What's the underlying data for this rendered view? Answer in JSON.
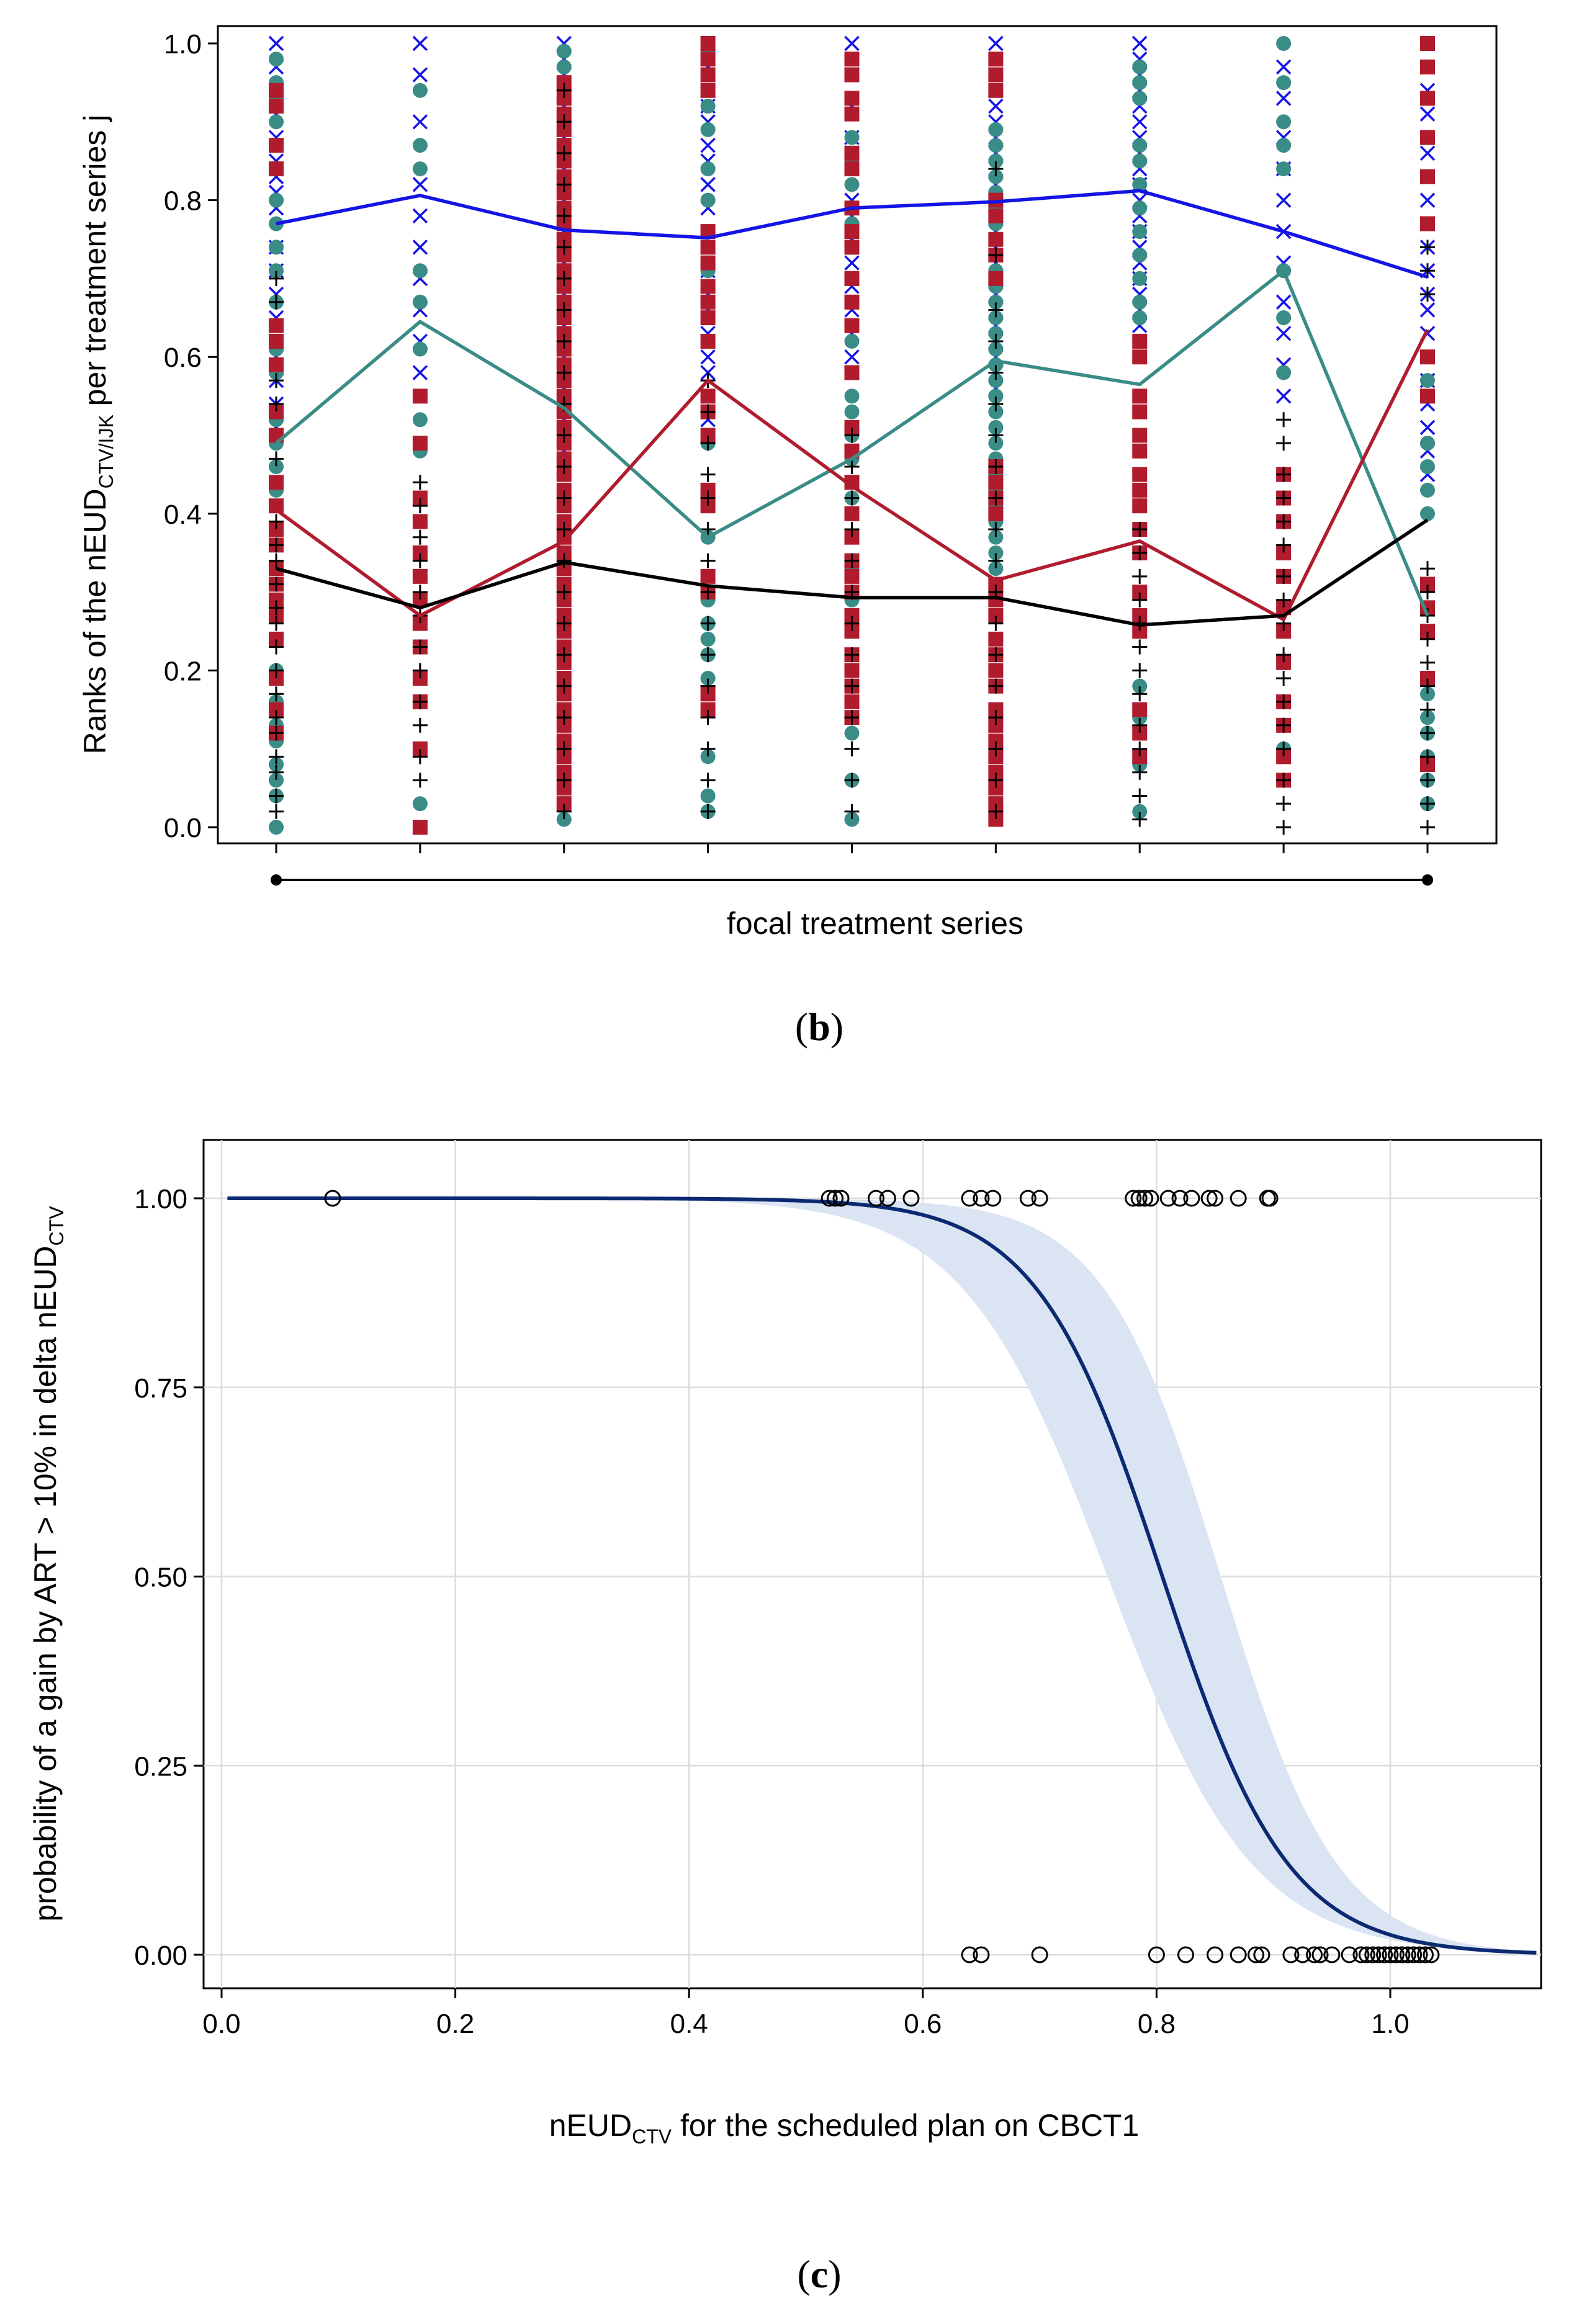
{
  "figure": {
    "caption_b_open": "(",
    "caption_b_letter": "b",
    "caption_b_close": ")",
    "caption_c_open": "(",
    "caption_c_letter": "c",
    "caption_c_close": ")"
  },
  "colors": {
    "blue": "#1414e6",
    "teal": "#3a8c86",
    "red": "#b01c2e",
    "black": "#000000",
    "navy": "#0c2a72",
    "band": "#dbe4f3",
    "grid": "#dcdcdc"
  },
  "chart_data": [
    {
      "type": "scatter",
      "panel": "b",
      "ylabel_pre": "Ranks of the nEUD",
      "ylabel_sub": "CTV/IJK",
      "ylabel_post": " per treatment series j",
      "xlabel": "focal treatment series",
      "ylim": [
        0,
        1
      ],
      "yticks": [
        "0.0",
        "0.2",
        "0.4",
        "0.6",
        "0.8",
        "1.0"
      ],
      "ytick_values": [
        0,
        0.2,
        0.4,
        0.6,
        0.8,
        1.0
      ],
      "x": [
        1,
        2,
        3,
        4,
        5,
        6,
        7,
        8,
        9
      ],
      "xlim": [
        0.6,
        9.4
      ],
      "grid": false,
      "series": [
        {
          "marker": "x",
          "color": "#1414e6",
          "mean": [
            0.77,
            0.806,
            0.762,
            0.752,
            0.79,
            0.798,
            0.812,
            0.76,
            0.702
          ],
          "points": [
            [
              1.0,
              0.97,
              0.94,
              0.91,
              0.88,
              0.85,
              0.83,
              0.81,
              0.79,
              0.74,
              0.71,
              0.68,
              0.65,
              0.6,
              0.57,
              0.54,
              0.51
            ],
            [
              1.0,
              0.96,
              0.9,
              0.82,
              0.78,
              0.74,
              0.7,
              0.66,
              0.62,
              0.58
            ],
            [
              1.0,
              0.98,
              0.96,
              0.94,
              0.92,
              0.9,
              0.88,
              0.86,
              0.84,
              0.82,
              0.8,
              0.78,
              0.76,
              0.74,
              0.72,
              0.7,
              0.68,
              0.66,
              0.64,
              0.62,
              0.6,
              0.58,
              0.56,
              0.54,
              0.52,
              0.5,
              0.48,
              0.46
            ],
            [
              1.0,
              0.97,
              0.94,
              0.92,
              0.9,
              0.87,
              0.85,
              0.82,
              0.79,
              0.76,
              0.74,
              0.71,
              0.68,
              0.66,
              0.63,
              0.6,
              0.58,
              0.55,
              0.52
            ],
            [
              1.0,
              0.96,
              0.92,
              0.88,
              0.84,
              0.8,
              0.78,
              0.75,
              0.72,
              0.69,
              0.66,
              0.63,
              0.6
            ],
            [
              1.0,
              0.98,
              0.96,
              0.94,
              0.92,
              0.9,
              0.88,
              0.86,
              0.84,
              0.82,
              0.8,
              0.78,
              0.76,
              0.74,
              0.72,
              0.7,
              0.68,
              0.66,
              0.64,
              0.62,
              0.6,
              0.58,
              0.56,
              0.54
            ],
            [
              1.0,
              0.98,
              0.96,
              0.94,
              0.92,
              0.9,
              0.88,
              0.86,
              0.84,
              0.82,
              0.8,
              0.78,
              0.76,
              0.74,
              0.72,
              0.7,
              0.68,
              0.66,
              0.64
            ],
            [
              0.97,
              0.93,
              0.88,
              0.84,
              0.8,
              0.76,
              0.72,
              0.67,
              0.63,
              0.59,
              0.55
            ],
            [
              0.97,
              0.94,
              0.91,
              0.88,
              0.86,
              0.83,
              0.8,
              0.77,
              0.74,
              0.71,
              0.68,
              0.66,
              0.63,
              0.6,
              0.57,
              0.54,
              0.51,
              0.48,
              0.45
            ]
          ]
        },
        {
          "marker": "circle",
          "color": "#3a8c86",
          "mean": [
            0.49,
            0.645,
            0.535,
            0.37,
            0.47,
            0.595,
            0.565,
            0.71,
            0.27
          ],
          "points": [
            [
              0.98,
              0.95,
              0.93,
              0.9,
              0.8,
              0.77,
              0.74,
              0.71,
              0.67,
              0.64,
              0.61,
              0.58,
              0.52,
              0.49,
              0.46,
              0.43,
              0.24,
              0.2,
              0.16,
              0.13,
              0.11,
              0.08,
              0.06,
              0.04,
              0.0
            ],
            [
              0.94,
              0.87,
              0.84,
              0.71,
              0.67,
              0.61,
              0.52,
              0.48,
              0.03
            ],
            [
              0.99,
              0.97,
              0.95,
              0.93,
              0.91,
              0.89,
              0.87,
              0.85,
              0.83,
              0.81,
              0.79,
              0.77,
              0.75,
              0.73,
              0.71,
              0.69,
              0.67,
              0.65,
              0.63,
              0.61,
              0.59,
              0.57,
              0.55,
              0.53,
              0.51,
              0.49,
              0.47,
              0.45,
              0.43,
              0.41,
              0.39,
              0.37,
              0.35,
              0.33,
              0.31,
              0.29,
              0.27,
              0.25,
              0.23,
              0.21,
              0.19,
              0.17,
              0.15,
              0.13,
              0.11,
              0.09,
              0.07,
              0.05,
              0.03,
              0.01
            ],
            [
              0.99,
              0.92,
              0.89,
              0.84,
              0.8,
              0.71,
              0.49,
              0.43,
              0.41,
              0.37,
              0.29,
              0.26,
              0.24,
              0.22,
              0.19,
              0.09,
              0.04,
              0.02
            ],
            [
              0.88,
              0.85,
              0.82,
              0.79,
              0.77,
              0.74,
              0.62,
              0.55,
              0.53,
              0.5,
              0.47,
              0.42,
              0.37,
              0.33,
              0.29,
              0.27,
              0.18,
              0.16,
              0.12,
              0.06,
              0.01
            ],
            [
              0.89,
              0.87,
              0.85,
              0.83,
              0.81,
              0.79,
              0.77,
              0.75,
              0.73,
              0.71,
              0.69,
              0.67,
              0.65,
              0.63,
              0.61,
              0.59,
              0.57,
              0.55,
              0.53,
              0.51,
              0.49,
              0.47,
              0.45,
              0.43,
              0.41,
              0.39,
              0.37,
              0.35,
              0.33,
              0.31,
              0.29
            ],
            [
              0.97,
              0.95,
              0.93,
              0.87,
              0.85,
              0.82,
              0.79,
              0.76,
              0.73,
              0.7,
              0.67,
              0.65,
              0.55,
              0.48,
              0.43,
              0.41,
              0.38,
              0.35,
              0.18,
              0.14,
              0.08,
              0.02
            ],
            [
              1.0,
              0.95,
              0.9,
              0.87,
              0.84,
              0.71,
              0.65,
              0.58,
              0.1
            ],
            [
              0.6,
              0.57,
              0.49,
              0.46,
              0.43,
              0.4,
              0.17,
              0.14,
              0.12,
              0.09,
              0.06,
              0.03
            ]
          ]
        },
        {
          "marker": "square",
          "color": "#b01c2e",
          "mean": [
            0.405,
            0.27,
            0.365,
            0.57,
            0.435,
            0.315,
            0.365,
            0.265,
            0.635
          ],
          "points": [
            [
              0.94,
              0.92,
              0.87,
              0.84,
              0.64,
              0.62,
              0.59,
              0.53,
              0.5,
              0.44,
              0.41,
              0.38,
              0.36,
              0.33,
              0.31,
              0.29,
              0.27,
              0.24,
              0.19,
              0.15,
              0.12
            ],
            [
              0.55,
              0.49,
              0.42,
              0.39,
              0.35,
              0.32,
              0.29,
              0.26,
              0.23,
              0.19,
              0.16,
              0.1,
              0.0
            ],
            [
              0.95,
              0.93,
              0.91,
              0.89,
              0.87,
              0.85,
              0.83,
              0.81,
              0.79,
              0.77,
              0.75,
              0.73,
              0.71,
              0.69,
              0.67,
              0.65,
              0.63,
              0.61,
              0.59,
              0.57,
              0.55,
              0.53,
              0.51,
              0.49,
              0.47,
              0.45,
              0.43,
              0.41,
              0.39,
              0.37,
              0.35,
              0.33,
              0.31,
              0.29,
              0.27,
              0.25,
              0.23,
              0.21,
              0.19,
              0.17,
              0.15,
              0.13,
              0.11,
              0.09,
              0.07,
              0.05,
              0.03
            ],
            [
              1.0,
              0.98,
              0.96,
              0.94,
              0.76,
              0.74,
              0.72,
              0.69,
              0.67,
              0.65,
              0.62,
              0.55,
              0.53,
              0.5,
              0.43,
              0.41,
              0.32,
              0.3,
              0.17,
              0.15
            ],
            [
              0.98,
              0.96,
              0.93,
              0.91,
              0.86,
              0.84,
              0.79,
              0.76,
              0.74,
              0.7,
              0.67,
              0.64,
              0.58,
              0.51,
              0.48,
              0.44,
              0.4,
              0.37,
              0.34,
              0.32,
              0.3,
              0.27,
              0.25,
              0.22,
              0.2,
              0.18,
              0.16,
              0.14
            ],
            [
              0.98,
              0.96,
              0.94,
              0.8,
              0.78,
              0.75,
              0.73,
              0.7,
              0.46,
              0.44,
              0.42,
              0.4,
              0.31,
              0.29,
              0.27,
              0.24,
              0.22,
              0.2,
              0.18,
              0.15,
              0.13,
              0.11,
              0.09,
              0.07,
              0.05,
              0.03,
              0.01
            ],
            [
              0.62,
              0.6,
              0.55,
              0.53,
              0.5,
              0.48,
              0.45,
              0.43,
              0.41,
              0.38,
              0.35,
              0.3,
              0.27,
              0.25,
              0.15,
              0.12,
              0.09
            ],
            [
              0.45,
              0.42,
              0.39,
              0.35,
              0.32,
              0.28,
              0.25,
              0.21,
              0.16,
              0.13,
              0.09,
              0.06
            ],
            [
              1.0,
              0.97,
              0.93,
              0.88,
              0.83,
              0.77,
              0.6,
              0.55,
              0.31,
              0.28,
              0.25,
              0.19,
              0.08
            ]
          ]
        },
        {
          "marker": "plus",
          "color": "#000000",
          "mean": [
            0.33,
            0.28,
            0.338,
            0.308,
            0.293,
            0.293,
            0.258,
            0.27,
            0.392
          ],
          "points": [
            [
              0.7,
              0.67,
              0.57,
              0.54,
              0.47,
              0.39,
              0.36,
              0.34,
              0.31,
              0.28,
              0.26,
              0.23,
              0.2,
              0.17,
              0.14,
              0.12,
              0.09,
              0.07,
              0.04,
              0.02
            ],
            [
              0.44,
              0.41,
              0.37,
              0.34,
              0.3,
              0.27,
              0.23,
              0.2,
              0.16,
              0.13,
              0.09,
              0.06
            ],
            [
              0.94,
              0.9,
              0.86,
              0.82,
              0.78,
              0.74,
              0.7,
              0.66,
              0.62,
              0.58,
              0.54,
              0.5,
              0.46,
              0.42,
              0.38,
              0.34,
              0.3,
              0.26,
              0.22,
              0.18,
              0.14,
              0.1,
              0.06,
              0.02
            ],
            [
              0.57,
              0.53,
              0.49,
              0.45,
              0.42,
              0.38,
              0.34,
              0.3,
              0.26,
              0.22,
              0.18,
              0.14,
              0.1,
              0.06,
              0.02
            ],
            [
              0.5,
              0.46,
              0.42,
              0.38,
              0.34,
              0.3,
              0.26,
              0.22,
              0.18,
              0.14,
              0.1,
              0.06,
              0.02
            ],
            [
              0.84,
              0.73,
              0.66,
              0.62,
              0.58,
              0.54,
              0.5,
              0.46,
              0.42,
              0.38,
              0.34,
              0.3,
              0.26,
              0.22,
              0.18,
              0.14,
              0.1,
              0.06,
              0.02
            ],
            [
              0.38,
              0.35,
              0.32,
              0.29,
              0.26,
              0.23,
              0.2,
              0.17,
              0.13,
              0.1,
              0.07,
              0.04,
              0.01
            ],
            [
              0.52,
              0.49,
              0.45,
              0.42,
              0.39,
              0.36,
              0.32,
              0.29,
              0.26,
              0.22,
              0.19,
              0.16,
              0.13,
              0.1,
              0.06,
              0.03,
              0.0
            ],
            [
              0.74,
              0.71,
              0.68,
              0.33,
              0.3,
              0.27,
              0.24,
              0.21,
              0.18,
              0.15,
              0.12,
              0.09,
              0.06,
              0.03,
              0.0
            ]
          ]
        }
      ]
    },
    {
      "type": "line",
      "panel": "c",
      "ylabel_pre": "probability of a gain by ART > 10% in delta nEUD",
      "ylabel_sub": "CTV",
      "xlabel_pre": "nEUD",
      "xlabel_sub": "CTV",
      "xlabel_post": " for the scheduled plan on CBCT1",
      "xlim": [
        -0.02,
        1.13
      ],
      "ylim": [
        -0.05,
        1.05
      ],
      "xticks": [
        "0.0",
        "0.2",
        "0.4",
        "0.6",
        "0.8",
        "1.0"
      ],
      "xtick_values": [
        0,
        0.2,
        0.4,
        0.6,
        0.8,
        1.0
      ],
      "yticks": [
        "0.00",
        "0.25",
        "0.50",
        "0.75",
        "1.00"
      ],
      "ytick_values": [
        0,
        0.25,
        0.5,
        0.75,
        1.0
      ],
      "grid": true,
      "curve": {
        "model": "logistic",
        "midpoint": 0.805,
        "scale": 0.054,
        "x_start": 0.005,
        "x_end": 1.125
      },
      "band": {
        "lower_midpoint": 0.758,
        "lower_scale": 0.062,
        "upper_midpoint": 0.855,
        "upper_scale": 0.05
      },
      "points_y1": [
        0.095,
        0.52,
        0.525,
        0.53,
        0.56,
        0.57,
        0.59,
        0.64,
        0.65,
        0.66,
        0.69,
        0.7,
        0.78,
        0.785,
        0.79,
        0.795,
        0.81,
        0.82,
        0.83,
        0.845,
        0.85,
        0.87,
        0.895,
        0.897
      ],
      "points_y0": [
        0.64,
        0.65,
        0.7,
        0.8,
        0.825,
        0.85,
        0.87,
        0.885,
        0.89,
        0.915,
        0.925,
        0.935,
        0.94,
        0.95,
        0.965,
        0.975,
        0.98,
        0.985,
        0.99,
        0.995,
        1.0,
        1.005,
        1.01,
        1.015,
        1.02,
        1.025,
        1.03,
        1.035
      ]
    }
  ]
}
